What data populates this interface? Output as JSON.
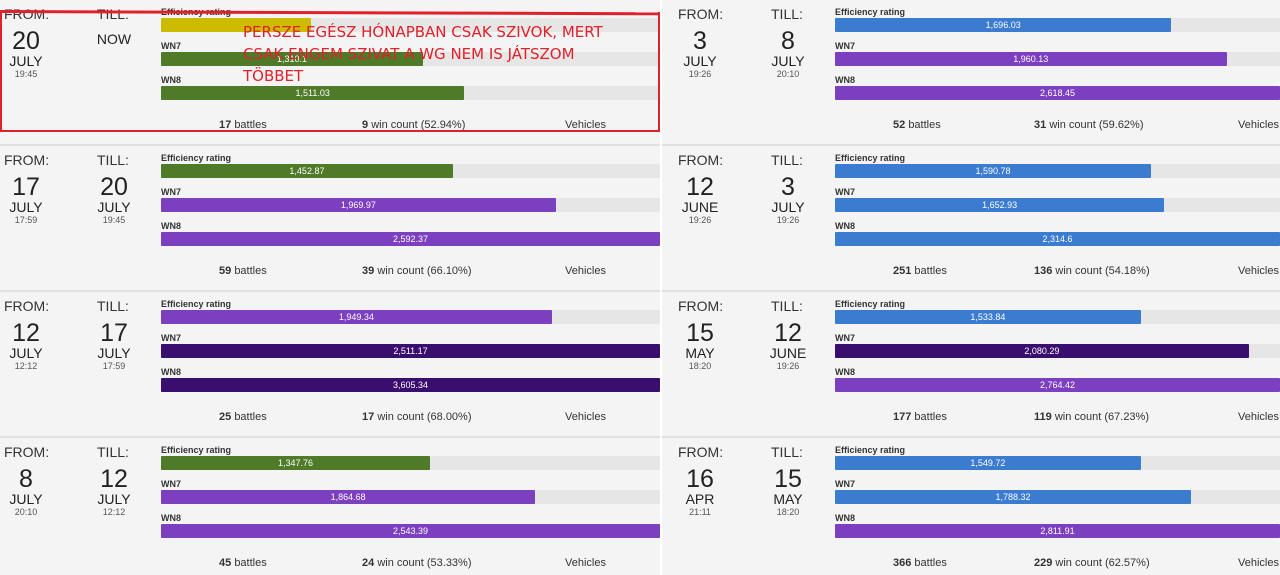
{
  "labels": {
    "from": "FROM:",
    "till": "TILL:",
    "battles": "battles",
    "win_count": "win count",
    "vehicles": "Vehicles"
  },
  "metric_names": {
    "efr": "Efficiency rating",
    "wn7": "WN7",
    "wn8": "WN8"
  },
  "colors": {
    "yellow": "#cdbb00",
    "green": "#4f7a28",
    "purple": "#7b3fc0",
    "dark_purple": "#3a0e6e",
    "blue": "#3b7bd0",
    "annotation_red": "#e0202a"
  },
  "annotation": {
    "text": "PERSZE EGÉSZ HÓNAPBAN CSAK SZIVOK, MERT CSAK ENGEM SZIVAT A WG NEM IS JÁTSZOM TÖBBET"
  },
  "cards_left": [
    {
      "from": {
        "day": "20",
        "month": "JULY",
        "time": "19:45"
      },
      "till": {
        "now": "NOW"
      },
      "efr": {
        "value": "",
        "fill": 0.3,
        "color": "#cdbb00"
      },
      "wn7": {
        "value": "1,310.1",
        "fill": 0.525,
        "color": "#4f7a28"
      },
      "wn8": {
        "value": "1,511.03",
        "fill": 0.608,
        "color": "#4f7a28"
      },
      "battles": "17",
      "wins": "9",
      "win_pct": "(52.94%)"
    },
    {
      "from": {
        "day": "17",
        "month": "JULY",
        "time": "17:59"
      },
      "till": {
        "day": "20",
        "month": "JULY",
        "time": "19:45"
      },
      "efr": {
        "value": "1,452.87",
        "fill": 0.585,
        "color": "#4f7a28"
      },
      "wn7": {
        "value": "1,969.97",
        "fill": 0.791,
        "color": "#7b3fc0"
      },
      "wn8": {
        "value": "2,592.37",
        "fill": 1.0,
        "color": "#7b3fc0"
      },
      "battles": "59",
      "wins": "39",
      "win_pct": "(66.10%)"
    },
    {
      "from": {
        "day": "12",
        "month": "JULY",
        "time": "12:12"
      },
      "till": {
        "day": "17",
        "month": "JULY",
        "time": "17:59"
      },
      "efr": {
        "value": "1,949.34",
        "fill": 0.783,
        "color": "#7b3fc0"
      },
      "wn7": {
        "value": "2,511.17",
        "fill": 1.0,
        "color": "#3a0e6e"
      },
      "wn8": {
        "value": "3,605.34",
        "fill": 1.0,
        "color": "#3a0e6e"
      },
      "battles": "25",
      "wins": "17",
      "win_pct": "(68.00%)"
    },
    {
      "from": {
        "day": "8",
        "month": "JULY",
        "time": "20:10"
      },
      "till": {
        "day": "12",
        "month": "JULY",
        "time": "12:12"
      },
      "efr": {
        "value": "1,347.76",
        "fill": 0.539,
        "color": "#4f7a28"
      },
      "wn7": {
        "value": "1,864.68",
        "fill": 0.75,
        "color": "#7b3fc0"
      },
      "wn8": {
        "value": "2,543.39",
        "fill": 1.0,
        "color": "#7b3fc0"
      },
      "battles": "45",
      "wins": "24",
      "win_pct": "(53.33%)"
    }
  ],
  "cards_right": [
    {
      "from": {
        "day": "3",
        "month": "JULY",
        "time": "19:26"
      },
      "till": {
        "day": "8",
        "month": "JULY",
        "time": "20:10"
      },
      "efr": {
        "value": "1,696.03",
        "fill": 0.756,
        "color": "#3b7bd0"
      },
      "wn7": {
        "value": "1,960.13",
        "fill": 0.88,
        "color": "#7b3fc0"
      },
      "wn8": {
        "value": "2,618.45",
        "fill": 1.0,
        "color": "#7b3fc0"
      },
      "battles": "52",
      "wins": "31",
      "win_pct": "(59.62%)"
    },
    {
      "from": {
        "day": "12",
        "month": "JUNE",
        "time": "19:26"
      },
      "till": {
        "day": "3",
        "month": "JULY",
        "time": "19:26"
      },
      "efr": {
        "value": "1,590.78",
        "fill": 0.71,
        "color": "#3b7bd0"
      },
      "wn7": {
        "value": "1,652.93",
        "fill": 0.74,
        "color": "#3b7bd0"
      },
      "wn8": {
        "value": "2,314.6",
        "fill": 1.0,
        "color": "#3b7bd0"
      },
      "battles": "251",
      "wins": "136",
      "win_pct": "(54.18%)"
    },
    {
      "from": {
        "day": "15",
        "month": "MAY",
        "time": "18:20"
      },
      "till": {
        "day": "12",
        "month": "JUNE",
        "time": "19:26"
      },
      "efr": {
        "value": "1,533.84",
        "fill": 0.687,
        "color": "#3b7bd0"
      },
      "wn7": {
        "value": "2,080.29",
        "fill": 0.93,
        "color": "#3a0e6e"
      },
      "wn8": {
        "value": "2,764.42",
        "fill": 1.0,
        "color": "#7b3fc0"
      },
      "battles": "177",
      "wins": "119",
      "win_pct": "(67.23%)"
    },
    {
      "from": {
        "day": "16",
        "month": "APR",
        "time": "21:11"
      },
      "till": {
        "day": "15",
        "month": "MAY",
        "time": "18:20"
      },
      "efr": {
        "value": "1,549.72",
        "fill": 0.687,
        "color": "#3b7bd0"
      },
      "wn7": {
        "value": "1,788.32",
        "fill": 0.8,
        "color": "#3b7bd0"
      },
      "wn8": {
        "value": "2,811.91",
        "fill": 1.0,
        "color": "#7b3fc0"
      },
      "battles": "366",
      "wins": "229",
      "win_pct": "(62.57%)"
    }
  ]
}
